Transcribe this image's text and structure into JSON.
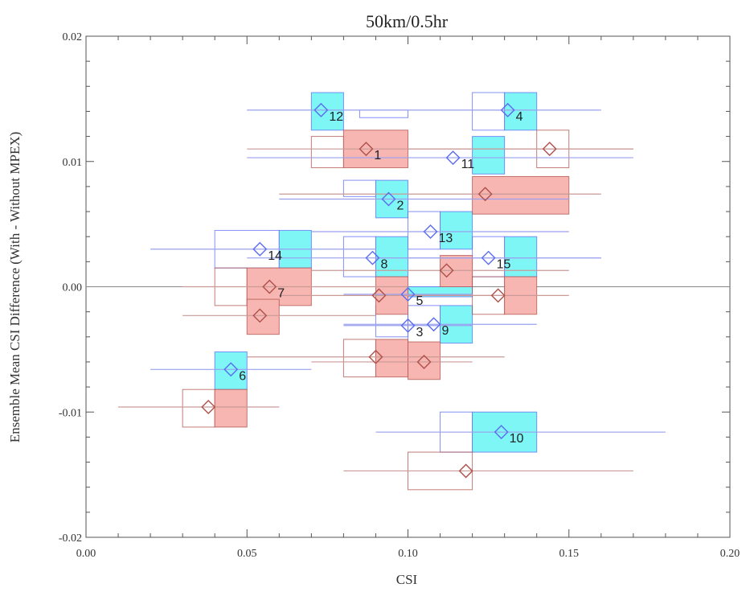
{
  "chart_data": {
    "type": "scatter",
    "title": "50km/0.5hr",
    "xlabel": "CSI",
    "ylabel": "Ensemble Mean CSI Difference (With - Without MPEX)",
    "xlim": [
      0.0,
      0.2
    ],
    "ylim": [
      -0.02,
      0.02
    ],
    "x_ticks": [
      "0.00",
      "0.05",
      "0.10",
      "0.15",
      "0.20"
    ],
    "y_ticks": [
      "-0.02",
      "-0.01",
      "0.00",
      "0.01",
      "0.02"
    ],
    "zero_line": 0.0,
    "colors": {
      "series_a_marker": "#5b6cf0",
      "series_a_line": "#9aa0ee",
      "series_a_fill": "#7ff6f6",
      "series_b_marker": "#b0504a",
      "series_b_line": "#c99a96",
      "series_b_fill": "#f7b6b2",
      "frame": "#555555"
    },
    "series": [
      {
        "marker": "diamond",
        "points": [
          {
            "label": "12",
            "x": 0.073,
            "y": 0.0141,
            "xerr": [
              0.05,
              0.1
            ],
            "boxes": [
              [
                0.07,
                0.08,
                0.0125,
                0.0155,
                "filled"
              ],
              [
                0.085,
                0.1,
                0.0135,
                0.0141,
                "outline"
              ]
            ]
          },
          {
            "label": "4",
            "x": 0.131,
            "y": 0.0141,
            "xerr": [
              0.1,
              0.16
            ],
            "boxes": [
              [
                0.12,
                0.13,
                0.0125,
                0.0155,
                "outline"
              ],
              [
                0.13,
                0.14,
                0.0125,
                0.0155,
                "filled"
              ]
            ]
          },
          {
            "label": "11",
            "x": 0.114,
            "y": 0.0103,
            "xerr": [
              0.05,
              0.17
            ],
            "boxes": [
              [
                0.12,
                0.13,
                0.009,
                0.012,
                "filled"
              ]
            ]
          },
          {
            "label": "2",
            "x": 0.094,
            "y": 0.007,
            "xerr": [
              0.06,
              0.15
            ],
            "boxes": [
              [
                0.08,
                0.09,
                0.0072,
                0.0085,
                "outline"
              ],
              [
                0.09,
                0.1,
                0.0055,
                0.0085,
                "filled"
              ]
            ]
          },
          {
            "label": "13",
            "x": 0.107,
            "y": 0.0044,
            "xerr": [
              0.07,
              0.15
            ],
            "boxes": [
              [
                0.1,
                0.11,
                0.003,
                0.006,
                "outline"
              ],
              [
                0.11,
                0.12,
                0.003,
                0.006,
                "filled"
              ]
            ]
          },
          {
            "label": "14",
            "x": 0.054,
            "y": 0.003,
            "xerr": [
              0.02,
              0.09
            ],
            "boxes": [
              [
                0.04,
                0.06,
                0.0015,
                0.0045,
                "outline"
              ],
              [
                0.06,
                0.07,
                0.0015,
                0.0045,
                "filled"
              ]
            ]
          },
          {
            "label": "8",
            "x": 0.089,
            "y": 0.0023,
            "xerr": [
              0.05,
              0.16
            ],
            "boxes": [
              [
                0.08,
                0.09,
                0.0008,
                0.004,
                "outline"
              ],
              [
                0.09,
                0.1,
                0.0008,
                0.004,
                "filled"
              ]
            ]
          },
          {
            "label": "15",
            "x": 0.125,
            "y": 0.0023,
            "xerr": [
              0.09,
              0.16
            ],
            "boxes": [
              [
                0.12,
                0.13,
                0.0008,
                0.004,
                "outline"
              ],
              [
                0.13,
                0.14,
                0.0008,
                0.004,
                "filled"
              ]
            ]
          },
          {
            "label": "5",
            "x": 0.1,
            "y": -0.0006,
            "xerr": [
              0.08,
              0.12
            ],
            "boxes": [
              [
                0.1,
                0.12,
                -0.0008,
                0.0,
                "filled"
              ]
            ]
          },
          {
            "label": "9",
            "x": 0.108,
            "y": -0.003,
            "xerr": [
              0.08,
              0.14
            ],
            "boxes": [
              [
                0.1,
                0.11,
                -0.0045,
                -0.0015,
                "outline"
              ],
              [
                0.11,
                0.12,
                -0.0045,
                -0.0015,
                "filled"
              ]
            ]
          },
          {
            "label": "6",
            "x": 0.045,
            "y": -0.0066,
            "xerr": [
              0.02,
              0.07
            ],
            "boxes": [
              [
                0.04,
                0.05,
                -0.0082,
                -0.0052,
                "filled"
              ]
            ]
          },
          {
            "label": "10",
            "x": 0.129,
            "y": -0.0116,
            "xerr": [
              0.09,
              0.18
            ],
            "boxes": [
              [
                0.11,
                0.12,
                -0.0132,
                -0.01,
                "outline"
              ],
              [
                0.12,
                0.14,
                -0.0132,
                -0.01,
                "filled"
              ]
            ]
          },
          {
            "label": "3",
            "x": 0.1,
            "y": -0.0031,
            "xerr": [
              0.08,
              0.12
            ],
            "boxes": [
              [
                0.09,
                0.1,
                -0.004,
                -0.0015,
                "outline"
              ]
            ]
          }
        ]
      },
      {
        "marker": "diamond",
        "points": [
          {
            "label": "1",
            "x": 0.087,
            "y": 0.011,
            "xerr": [
              0.05,
              0.17
            ],
            "boxes": [
              [
                0.07,
                0.08,
                0.0095,
                0.012,
                "outline"
              ],
              [
                0.08,
                0.1,
                0.0095,
                0.0125,
                "filled"
              ]
            ]
          },
          {
            "label": "",
            "x": 0.144,
            "y": 0.011,
            "xerr": [
              0.1,
              0.17
            ],
            "boxes": [
              [
                0.14,
                0.15,
                0.0095,
                0.0125,
                "outline"
              ]
            ]
          },
          {
            "label": "",
            "x": 0.124,
            "y": 0.0074,
            "xerr": [
              0.06,
              0.16
            ],
            "boxes": [
              [
                0.12,
                0.15,
                0.0058,
                0.0088,
                "filled"
              ]
            ]
          },
          {
            "label": "",
            "x": 0.112,
            "y": 0.0013,
            "xerr": [
              0.07,
              0.15
            ],
            "boxes": [
              [
                0.11,
                0.12,
                0.0,
                0.0025,
                "filled"
              ]
            ]
          },
          {
            "label": "7",
            "x": 0.057,
            "y": 0.0,
            "xerr": [
              0.03,
              0.1
            ],
            "boxes": [
              [
                0.04,
                0.05,
                -0.0015,
                0.0015,
                "outline"
              ],
              [
                0.05,
                0.07,
                -0.0015,
                0.0015,
                "filled"
              ]
            ]
          },
          {
            "label": "",
            "x": 0.054,
            "y": -0.0023,
            "xerr": [
              0.03,
              0.09
            ],
            "boxes": [
              [
                0.05,
                0.06,
                -0.0038,
                -0.001,
                "filled"
              ]
            ]
          },
          {
            "label": "",
            "x": 0.091,
            "y": -0.0007,
            "xerr": [
              0.06,
              0.13
            ],
            "boxes": [
              [
                0.09,
                0.1,
                -0.0022,
                0.0008,
                "filled"
              ]
            ]
          },
          {
            "label": "",
            "x": 0.128,
            "y": -0.0007,
            "xerr": [
              0.1,
              0.15
            ],
            "boxes": [
              [
                0.12,
                0.13,
                -0.0022,
                0.0008,
                "outline"
              ],
              [
                0.13,
                0.14,
                -0.0022,
                0.0008,
                "filled"
              ]
            ]
          },
          {
            "label": "",
            "x": 0.09,
            "y": -0.0056,
            "xerr": [
              0.05,
              0.13
            ],
            "boxes": [
              [
                0.08,
                0.09,
                -0.0072,
                -0.0042,
                "outline"
              ],
              [
                0.09,
                0.1,
                -0.0072,
                -0.0042,
                "filled"
              ]
            ]
          },
          {
            "label": "",
            "x": 0.105,
            "y": -0.006,
            "xerr": [
              0.07,
              0.12
            ],
            "boxes": [
              [
                0.1,
                0.11,
                -0.0074,
                -0.0044,
                "filled"
              ]
            ]
          },
          {
            "label": "",
            "x": 0.038,
            "y": -0.0096,
            "xerr": [
              0.01,
              0.06
            ],
            "boxes": [
              [
                0.03,
                0.04,
                -0.0112,
                -0.0082,
                "outline"
              ],
              [
                0.04,
                0.05,
                -0.0112,
                -0.0082,
                "filled"
              ]
            ]
          },
          {
            "label": "",
            "x": 0.118,
            "y": -0.0147,
            "xerr": [
              0.08,
              0.17
            ],
            "boxes": [
              [
                0.1,
                0.12,
                -0.0162,
                -0.0132,
                "outline"
              ]
            ]
          }
        ]
      }
    ]
  }
}
